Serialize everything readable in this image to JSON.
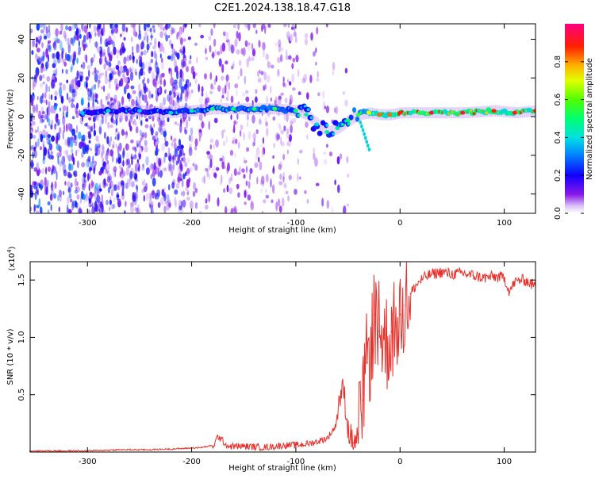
{
  "title": "C2E1.2024.138.18.47.G18",
  "chart_data": [
    {
      "type": "heatmap",
      "xlabel": "Height of straight line (km)",
      "ylabel": "Frequency (Hz)",
      "xlim": [
        -355,
        130
      ],
      "ylim": [
        -50,
        48
      ],
      "xticks": [
        -300,
        -200,
        -100,
        0,
        100
      ],
      "xtick_labels": [
        "-300",
        "-200",
        "-100",
        "0",
        "100"
      ],
      "yticks": [
        -40,
        -20,
        0,
        20,
        40
      ],
      "ytick_labels": [
        "-40",
        "-20",
        "0",
        "20",
        "40"
      ],
      "colorbar": {
        "label": "Normalized spectral amplitude",
        "range": [
          0,
          1
        ],
        "ticks": [
          0.0,
          0.2,
          0.4,
          0.6,
          0.8
        ],
        "tick_labels": [
          "0.0",
          "0.2",
          "0.4",
          "0.6",
          "0.8"
        ],
        "colors": [
          "#ffffff",
          "#c8a8f0",
          "#7a00e8",
          "#0000ff",
          "#00c8ff",
          "#00ff80",
          "#40ff00",
          "#ffff00",
          "#ff8000",
          "#ff0000",
          "#ff0080"
        ]
      },
      "ridge": {
        "x": [
          -305,
          -280,
          -250,
          -220,
          -200,
          -180,
          -160,
          -140,
          -120,
          -100,
          -90,
          -80,
          -70,
          -60,
          -50,
          -40,
          -30,
          -20,
          -10,
          0,
          30,
          60,
          90,
          110,
          130
        ],
        "frequency": [
          2,
          3,
          3,
          2,
          3,
          4,
          4,
          4,
          4,
          3,
          1,
          -4,
          -8,
          -6,
          -2,
          1,
          2,
          1,
          1,
          2,
          2,
          2,
          3,
          2,
          3
        ],
        "amplitude": [
          0.35,
          0.4,
          0.35,
          0.4,
          0.45,
          0.5,
          0.5,
          0.5,
          0.55,
          0.5,
          0.45,
          0.4,
          0.45,
          0.45,
          0.5,
          0.55,
          0.7,
          0.85,
          0.85,
          0.9,
          0.95,
          0.95,
          0.9,
          0.9,
          0.9
        ]
      }
    },
    {
      "type": "line",
      "xlabel": "Height of straight line (km)",
      "ylabel": "SNR (10 * v/v)",
      "yunit": "(x10",
      "yunit_exp": "4",
      "yunit_close": ")",
      "xlim": [
        -355,
        130
      ],
      "ylim": [
        0,
        1.66
      ],
      "xticks": [
        -300,
        -200,
        -100,
        0,
        100
      ],
      "xtick_labels": [
        "-300",
        "-200",
        "-100",
        "0",
        "100"
      ],
      "yticks": [
        0.5,
        1.0,
        1.5
      ],
      "ytick_labels": [
        "0.5",
        "1.0",
        "1.5"
      ],
      "color": "#e8302a",
      "series": [
        {
          "x": [
            -355,
            -330,
            -300,
            -270,
            -240,
            -210,
            -190,
            -178,
            -175,
            -165,
            -150,
            -130,
            -110,
            -100,
            -90,
            -80,
            -70,
            -62,
            -58,
            -54,
            -50,
            -45,
            -40,
            -36,
            -32,
            -28,
            -24,
            -20,
            -16,
            -12,
            -8,
            -4,
            0,
            5,
            10,
            15,
            20,
            25,
            30,
            40,
            50,
            60,
            70,
            80,
            90,
            100,
            105,
            110,
            115,
            120,
            125,
            130
          ],
          "y": [
            0.01,
            0.01,
            0.01,
            0.02,
            0.02,
            0.03,
            0.04,
            0.06,
            0.14,
            0.05,
            0.05,
            0.04,
            0.06,
            0.06,
            0.07,
            0.09,
            0.12,
            0.22,
            0.48,
            0.55,
            0.2,
            0.08,
            0.12,
            0.45,
            0.78,
            0.9,
            1.2,
            1.05,
            1.0,
            0.95,
            1.05,
            1.1,
            1.2,
            1.28,
            1.38,
            1.45,
            1.5,
            1.53,
            1.55,
            1.57,
            1.55,
            1.56,
            1.54,
            1.52,
            1.53,
            1.52,
            1.4,
            1.48,
            1.5,
            1.5,
            1.47,
            1.45
          ]
        }
      ]
    }
  ]
}
